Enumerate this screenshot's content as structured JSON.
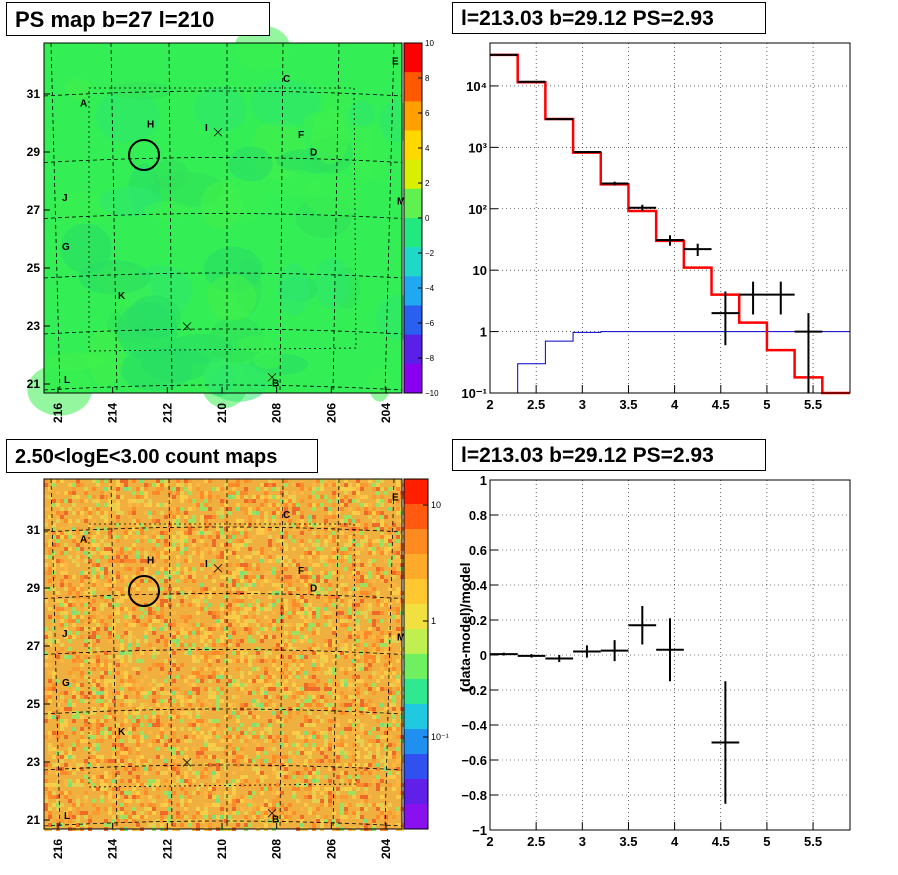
{
  "panels": {
    "ps_map_title": "PS map b=27 l=210",
    "spectrum_title": "l=213.03 b=29.12 PS=2.93",
    "count_map_title": "2.50<logE<3.00 count maps",
    "residual_title": "l=213.03 b=29.12 PS=2.93"
  },
  "map_axes": {
    "x_ticks": [
      "216",
      "214",
      "212",
      "210",
      "208",
      "206",
      "204"
    ],
    "y_ticks": [
      "31",
      "29",
      "27",
      "25",
      "23",
      "21"
    ],
    "source_labels": [
      "A",
      "B",
      "C",
      "D",
      "E",
      "F",
      "G",
      "H",
      "I",
      "J",
      "K",
      "L",
      "M"
    ]
  },
  "ps_colorbar": {
    "ticks": [
      "10",
      "8",
      "6",
      "4",
      "2",
      "0",
      "−2",
      "−4",
      "−6",
      "−8",
      "−10"
    ]
  },
  "count_colorbar": {
    "ticks": [
      "10",
      "1",
      "10⁻¹"
    ]
  },
  "colors": {
    "ps_map_fill": "#33ee55",
    "model_line": "#ff0000",
    "blue_line": "#0000cc",
    "data_points": "#000000"
  },
  "chart_data": [
    {
      "type": "line",
      "title": "l=213.03 b=29.12 PS=2.93",
      "xlim": [
        2,
        5.9
      ],
      "ylim": [
        0.1,
        50000
      ],
      "log_y": true,
      "grid": true,
      "x_ticks": [
        "2",
        "2.5",
        "3",
        "3.5",
        "4",
        "4.5",
        "5",
        "5.5"
      ],
      "y_ticks": [
        "10⁻¹",
        "1",
        "10",
        "10²",
        "10³",
        "10⁴"
      ],
      "series": [
        {
          "style": "red-histogram",
          "bin_edges": [
            2.0,
            2.3,
            2.6,
            2.9,
            3.2,
            3.5,
            3.8,
            4.1,
            4.4,
            4.7,
            5.0,
            5.3,
            5.6,
            5.9
          ],
          "values": [
            32000,
            11500,
            2900,
            820,
            250,
            92,
            30,
            11,
            4,
            1.4,
            0.5,
            0.18,
            0.06
          ]
        },
        {
          "style": "blue-histogram",
          "bin_edges": [
            2.0,
            2.3,
            2.6,
            2.9,
            3.2,
            3.5,
            3.8,
            4.1,
            4.4,
            4.7,
            5.0,
            5.3,
            5.6,
            5.9
          ],
          "values": [
            0.1,
            0.3,
            0.7,
            0.97,
            1.0,
            1.0,
            1.0,
            1.0,
            1.0,
            1.0,
            1.0,
            1.0,
            1.0
          ]
        },
        {
          "style": "data-points",
          "points": [
            {
              "x": 2.15,
              "y": 32000,
              "xerr": 0.15,
              "ylo": 31700,
              "yhi": 32300
            },
            {
              "x": 2.45,
              "y": 11700,
              "xerr": 0.15,
              "ylo": 11500,
              "yhi": 11900
            },
            {
              "x": 2.75,
              "y": 2880,
              "xerr": 0.15,
              "ylo": 2820,
              "yhi": 2940
            },
            {
              "x": 3.05,
              "y": 840,
              "xerr": 0.15,
              "ylo": 810,
              "yhi": 870
            },
            {
              "x": 3.35,
              "y": 258,
              "xerr": 0.15,
              "ylo": 240,
              "yhi": 276
            },
            {
              "x": 3.65,
              "y": 104,
              "xerr": 0.15,
              "ylo": 92,
              "yhi": 116
            },
            {
              "x": 3.95,
              "y": 31,
              "xerr": 0.15,
              "ylo": 25,
              "yhi": 37
            },
            {
              "x": 4.25,
              "y": 22,
              "xerr": 0.15,
              "ylo": 17,
              "yhi": 27
            },
            {
              "x": 4.55,
              "y": 2,
              "xerr": 0.15,
              "ylo": 0.6,
              "yhi": 4.5
            },
            {
              "x": 4.85,
              "y": 4,
              "xerr": 0.15,
              "ylo": 1.9,
              "yhi": 6.5
            },
            {
              "x": 5.15,
              "y": 4,
              "xerr": 0.15,
              "ylo": 1.9,
              "yhi": 6.5
            },
            {
              "x": 5.45,
              "y": 1,
              "xerr": 0.15,
              "ylo": 0.1,
              "yhi": 2
            }
          ]
        }
      ]
    },
    {
      "type": "scatter",
      "title": "l=213.03 b=29.12 PS=2.93",
      "ylabel": "(data-model)/model",
      "xlim": [
        2,
        5.9
      ],
      "ylim": [
        -1,
        1
      ],
      "grid": true,
      "x_ticks": [
        "2",
        "2.5",
        "3",
        "3.5",
        "4",
        "4.5",
        "5",
        "5.5"
      ],
      "y_ticks": [
        "1",
        "0.8",
        "0.6",
        "0.4",
        "0.2",
        "0",
        "−0.2",
        "−0.4",
        "−0.6",
        "−0.8",
        "−1"
      ],
      "points": [
        {
          "x": 2.15,
          "y": 0.005,
          "xerr": 0.15,
          "yerr": 0.008
        },
        {
          "x": 2.45,
          "y": -0.005,
          "xerr": 0.15,
          "yerr": 0.01
        },
        {
          "x": 2.75,
          "y": -0.02,
          "xerr": 0.15,
          "yerr": 0.02
        },
        {
          "x": 3.05,
          "y": 0.02,
          "xerr": 0.15,
          "yerr": 0.035
        },
        {
          "x": 3.35,
          "y": 0.025,
          "xerr": 0.15,
          "yerr": 0.06
        },
        {
          "x": 3.65,
          "y": 0.17,
          "xerr": 0.15,
          "yerr": 0.11
        },
        {
          "x": 3.95,
          "y": 0.03,
          "xerr": 0.15,
          "yerr": 0.18
        },
        {
          "x": 4.55,
          "y": -0.5,
          "xerr": 0.15,
          "yerr": 0.35
        }
      ]
    }
  ]
}
